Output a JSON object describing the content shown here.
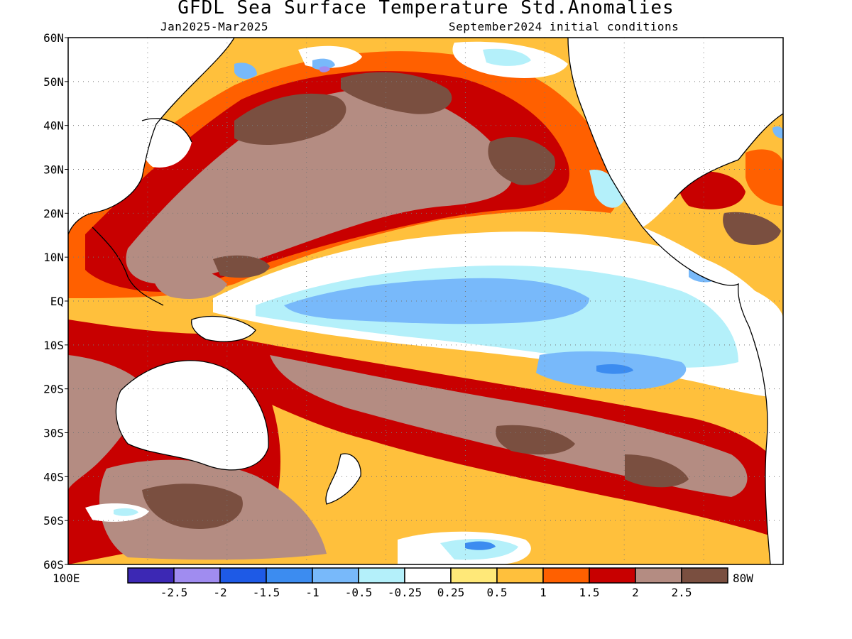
{
  "title": "GFDL Sea Surface Temperature Std.Anomalies",
  "subtitle_left": "Jan2025-Mar2025",
  "subtitle_right": "September2024 initial conditions",
  "lat_labels": [
    "60N",
    "50N",
    "40N",
    "30N",
    "20N",
    "10N",
    "EQ",
    "10S",
    "20S",
    "30S",
    "40S",
    "50S",
    "60S"
  ],
  "lat_values": [
    60,
    50,
    40,
    30,
    20,
    10,
    0,
    -10,
    -20,
    -30,
    -40,
    -50,
    -60
  ],
  "lon_labels": {
    "left": "100E",
    "right": "80W"
  },
  "lon_range": [
    100,
    280
  ],
  "colorbar": {
    "colors": [
      "#3c28b4",
      "#a08cf0",
      "#1e5ae6",
      "#3c8cf0",
      "#78b9fa",
      "#b4f0fa",
      "#ffffff",
      "#ffe878",
      "#ffc03c",
      "#ff6000",
      "#c80000",
      "#b48c82",
      "#7a4f40"
    ],
    "tick_labels": [
      "-2.5",
      "-2",
      "-1.5",
      "-1",
      "-0.5",
      "-0.25",
      "0.25",
      "0.5",
      "1",
      "1.5",
      "2",
      "2.5"
    ]
  },
  "map_colors": {
    "land": "#ffffff",
    "coast": "#000000",
    "grid": "#888888"
  }
}
